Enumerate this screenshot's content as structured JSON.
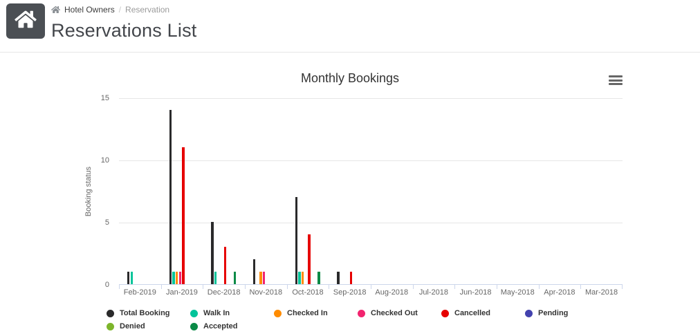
{
  "app": {
    "header": {
      "home_tile_color": "#4b4f54",
      "breadcrumb": {
        "link": "Hotel Owners",
        "separator": "/",
        "current": "Reservation"
      },
      "page_title": "Reservations List"
    }
  },
  "chart_data": {
    "type": "bar",
    "title": "Monthly Bookings",
    "xlabel": "",
    "ylabel": "Booking status",
    "ylim": [
      0,
      15
    ],
    "yticks": [
      0,
      5,
      10,
      15
    ],
    "grid": true,
    "legend_position": "bottom",
    "axis_line_color": "#ccd6eb",
    "gridline_color": "#e6e6e6",
    "categories": [
      "Feb-2019",
      "Jan-2019",
      "Dec-2018",
      "Nov-2018",
      "Oct-2018",
      "Sep-2018",
      "Aug-2018",
      "Jul-2018",
      "Jun-2018",
      "May-2018",
      "Apr-2018",
      "Mar-2018"
    ],
    "series": [
      {
        "name": "Total Booking",
        "color": "#2a2a2b",
        "values": [
          1,
          14,
          5,
          2,
          7,
          1,
          0,
          0,
          0,
          0,
          0,
          0
        ]
      },
      {
        "name": "Walk In",
        "color": "#00c49a",
        "values": [
          1,
          1,
          1,
          0,
          1,
          0,
          0,
          0,
          0,
          0,
          0,
          0
        ]
      },
      {
        "name": "Checked In",
        "color": "#ff8c00",
        "values": [
          0,
          1,
          0,
          1,
          1,
          0,
          0,
          0,
          0,
          0,
          0,
          0
        ]
      },
      {
        "name": "Checked Out",
        "color": "#f2246f",
        "values": [
          0,
          1,
          0,
          1,
          0,
          0,
          0,
          0,
          0,
          0,
          0,
          0
        ]
      },
      {
        "name": "Cancelled",
        "color": "#e60000",
        "values": [
          0,
          11,
          3,
          0,
          4,
          1,
          0,
          0,
          0,
          0,
          0,
          0
        ]
      },
      {
        "name": "Pending",
        "color": "#4342ae",
        "values": [
          0,
          0,
          0,
          0,
          0,
          0,
          0,
          0,
          0,
          0,
          0,
          0
        ]
      },
      {
        "name": "Denied",
        "color": "#7db52b",
        "values": [
          0,
          0,
          0,
          0,
          0,
          0,
          0,
          0,
          0,
          0,
          0,
          0
        ]
      },
      {
        "name": "Accepted",
        "color": "#0a8a46",
        "values": [
          0,
          0,
          1,
          0,
          1,
          0,
          0,
          0,
          0,
          0,
          0,
          0
        ]
      }
    ]
  }
}
